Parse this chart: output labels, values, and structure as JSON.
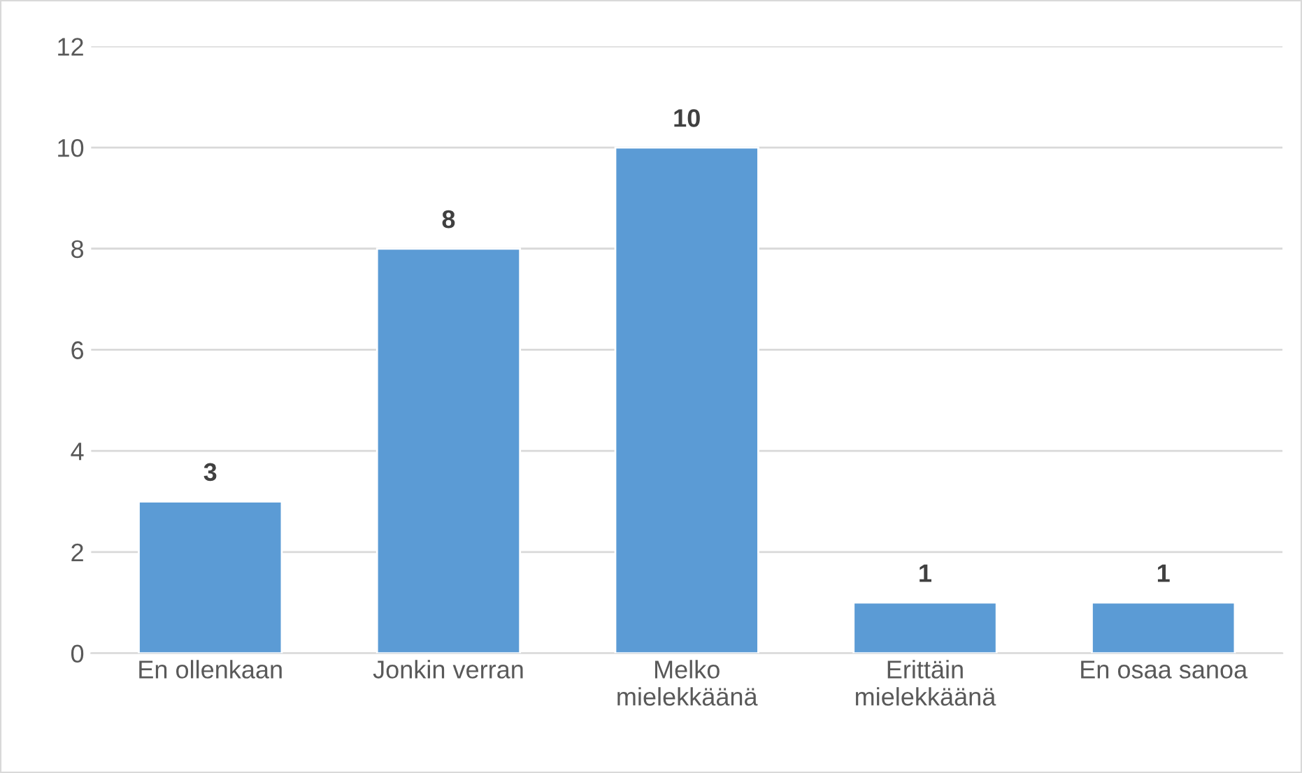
{
  "chart_data": {
    "type": "bar",
    "categories": [
      "En ollenkaan",
      "Jonkin verran",
      "Melko\nmielekkäänä",
      "Erittäin\nmielekkäänä",
      "En osaa sanoa"
    ],
    "values": [
      3,
      8,
      10,
      1,
      1
    ],
    "color": "#5b9bd5",
    "ylim": [
      0,
      12
    ],
    "yticks": [
      0,
      2,
      4,
      6,
      8,
      10,
      12
    ],
    "grid": "y",
    "data_labels": true
  }
}
